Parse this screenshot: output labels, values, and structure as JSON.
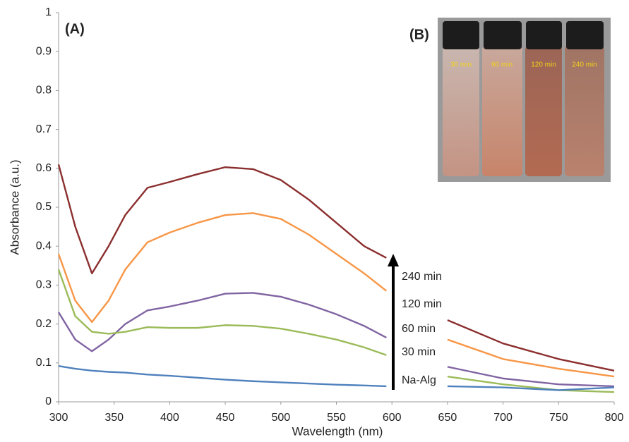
{
  "chart_data": {
    "type": "line",
    "panel_label": "(A)",
    "x_label": "Wavelength (nm)",
    "y_label": "Absorbance (a.u.)",
    "xlim": [
      300,
      800
    ],
    "ylim": [
      0,
      1
    ],
    "xticks": [
      300,
      350,
      400,
      450,
      500,
      550,
      600,
      650,
      700,
      750,
      800
    ],
    "yticks": [
      0,
      0.1,
      0.2,
      0.3,
      0.4,
      0.5,
      0.6,
      0.7,
      0.8,
      0.9,
      1
    ],
    "grid": false,
    "x": [
      300,
      315,
      330,
      345,
      360,
      380,
      400,
      425,
      450,
      475,
      500,
      525,
      550,
      575,
      595,
      625,
      650,
      700,
      750,
      800
    ],
    "series": [
      {
        "name": "240 min",
        "color": "#8b2e2e",
        "values": [
          0.61,
          0.45,
          0.33,
          0.4,
          0.48,
          0.55,
          0.565,
          0.585,
          0.603,
          0.598,
          0.57,
          0.52,
          0.46,
          0.4,
          0.37,
          null,
          0.21,
          0.15,
          0.11,
          0.08
        ]
      },
      {
        "name": "120 min",
        "color": "#f79646",
        "values": [
          0.38,
          0.26,
          0.205,
          0.26,
          0.34,
          0.41,
          0.435,
          0.46,
          0.48,
          0.485,
          0.47,
          0.43,
          0.38,
          0.33,
          0.285,
          null,
          0.16,
          0.11,
          0.085,
          0.065
        ]
      },
      {
        "name": "60 min",
        "color": "#8064a2",
        "values": [
          0.23,
          0.16,
          0.13,
          0.16,
          0.2,
          0.235,
          0.245,
          0.26,
          0.278,
          0.28,
          0.27,
          0.25,
          0.225,
          0.195,
          0.165,
          null,
          0.09,
          0.06,
          0.045,
          0.04
        ]
      },
      {
        "name": "30 min",
        "color": "#9bbb59",
        "values": [
          0.34,
          0.22,
          0.18,
          0.175,
          0.18,
          0.192,
          0.19,
          0.19,
          0.197,
          0.195,
          0.188,
          0.175,
          0.16,
          0.14,
          0.12,
          null,
          0.065,
          0.045,
          0.03,
          0.025
        ]
      },
      {
        "name": "Na-Alg",
        "color": "#4f81bd",
        "values": [
          0.092,
          0.085,
          0.08,
          0.077,
          0.075,
          0.07,
          0.067,
          0.062,
          0.057,
          0.053,
          0.05,
          0.047,
          0.044,
          0.042,
          0.04,
          null,
          0.04,
          0.037,
          0.03,
          0.037
        ]
      }
    ],
    "inset": {
      "label": "(B)",
      "vial_labels": [
        "30 min",
        "60 min",
        "120 min",
        "240 min"
      ]
    }
  }
}
